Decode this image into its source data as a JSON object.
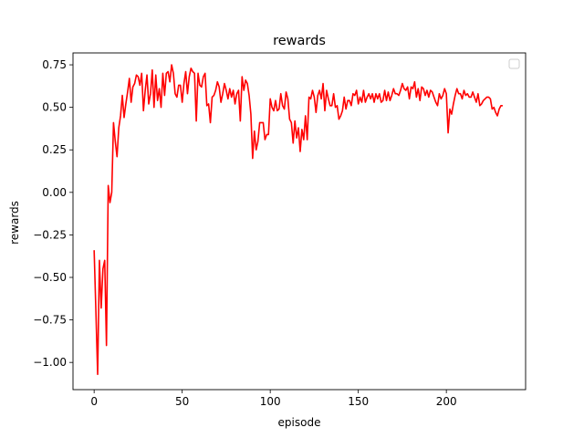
{
  "chart_data": {
    "type": "line",
    "title": "rewards",
    "xlabel": "episode",
    "ylabel": "rewards",
    "xlim": [
      -12,
      245
    ],
    "ylim": [
      -1.16,
      0.82
    ],
    "xticks": [
      0,
      50,
      100,
      150,
      200
    ],
    "yticks": [
      -1.0,
      -0.75,
      -0.5,
      -0.25,
      0.0,
      0.25,
      0.5,
      0.75
    ],
    "ytick_labels": [
      "−1.00",
      "−0.75",
      "−0.50",
      "−0.25",
      "0.00",
      "0.25",
      "0.50",
      "0.75"
    ],
    "grid": false,
    "legend": {
      "placement": "top-right",
      "entries": []
    },
    "series": [
      {
        "color": "#ff0000",
        "x_start": 0,
        "x_step": 1,
        "values": [
          -0.34,
          -0.7,
          -1.07,
          -0.4,
          -0.68,
          -0.45,
          -0.4,
          -0.9,
          0.04,
          -0.06,
          0.0,
          0.41,
          0.3,
          0.21,
          0.38,
          0.45,
          0.57,
          0.44,
          0.52,
          0.59,
          0.67,
          0.53,
          0.62,
          0.64,
          0.69,
          0.68,
          0.63,
          0.7,
          0.48,
          0.6,
          0.69,
          0.52,
          0.58,
          0.72,
          0.5,
          0.69,
          0.54,
          0.61,
          0.5,
          0.7,
          0.57,
          0.7,
          0.71,
          0.65,
          0.75,
          0.7,
          0.58,
          0.56,
          0.63,
          0.63,
          0.53,
          0.64,
          0.71,
          0.58,
          0.68,
          0.73,
          0.71,
          0.7,
          0.42,
          0.7,
          0.63,
          0.62,
          0.68,
          0.7,
          0.51,
          0.52,
          0.41,
          0.56,
          0.57,
          0.6,
          0.65,
          0.62,
          0.53,
          0.58,
          0.64,
          0.6,
          0.55,
          0.61,
          0.56,
          0.6,
          0.52,
          0.58,
          0.6,
          0.42,
          0.68,
          0.6,
          0.66,
          0.64,
          0.57,
          0.46,
          0.2,
          0.36,
          0.25,
          0.3,
          0.41,
          0.41,
          0.41,
          0.31,
          0.34,
          0.34,
          0.55,
          0.5,
          0.48,
          0.54,
          0.48,
          0.49,
          0.58,
          0.51,
          0.49,
          0.59,
          0.55,
          0.43,
          0.41,
          0.29,
          0.42,
          0.32,
          0.38,
          0.24,
          0.37,
          0.31,
          0.45,
          0.31,
          0.56,
          0.55,
          0.6,
          0.56,
          0.47,
          0.57,
          0.6,
          0.55,
          0.64,
          0.48,
          0.6,
          0.55,
          0.51,
          0.51,
          0.58,
          0.5,
          0.51,
          0.43,
          0.45,
          0.48,
          0.56,
          0.49,
          0.54,
          0.54,
          0.51,
          0.58,
          0.57,
          0.6,
          0.52,
          0.56,
          0.53,
          0.6,
          0.53,
          0.56,
          0.58,
          0.55,
          0.58,
          0.53,
          0.58,
          0.55,
          0.58,
          0.53,
          0.54,
          0.6,
          0.54,
          0.59,
          0.54,
          0.57,
          0.61,
          0.58,
          0.58,
          0.57,
          0.6,
          0.64,
          0.61,
          0.6,
          0.62,
          0.55,
          0.62,
          0.61,
          0.65,
          0.56,
          0.61,
          0.54,
          0.62,
          0.61,
          0.57,
          0.6,
          0.56,
          0.6,
          0.59,
          0.56,
          0.53,
          0.51,
          0.58,
          0.55,
          0.57,
          0.61,
          0.58,
          0.35,
          0.49,
          0.46,
          0.52,
          0.57,
          0.61,
          0.58,
          0.58,
          0.55,
          0.6,
          0.57,
          0.58,
          0.56,
          0.56,
          0.59,
          0.56,
          0.53,
          0.58,
          0.51,
          0.52,
          0.54,
          0.55,
          0.56,
          0.56,
          0.55,
          0.49,
          0.5,
          0.47,
          0.45,
          0.49,
          0.51,
          0.51
        ]
      }
    ]
  }
}
